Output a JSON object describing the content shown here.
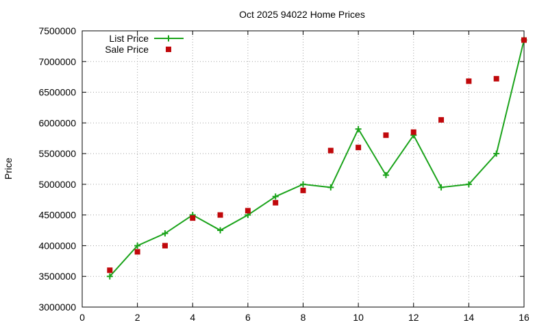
{
  "chart_data": {
    "type": "line",
    "title": "Oct 2025 94022 Home Prices",
    "xlabel": "",
    "ylabel": "Price",
    "xlim": [
      0,
      16
    ],
    "ylim": [
      3000000,
      7500000
    ],
    "x_ticks": [
      "0",
      "2",
      "4",
      "6",
      "8",
      "10",
      "12",
      "14",
      "16"
    ],
    "y_ticks": [
      "3000000",
      "3500000",
      "4000000",
      "4500000",
      "5000000",
      "5500000",
      "6000000",
      "6500000",
      "7000000",
      "7500000"
    ],
    "grid": true,
    "legend_position": "top-left",
    "series": [
      {
        "name": "List Price",
        "style": "line-with-plus-markers",
        "color": "#1aa31a",
        "x": [
          1,
          2,
          3,
          4,
          5,
          6,
          7,
          8,
          9,
          10,
          11,
          12,
          13,
          14,
          15,
          16
        ],
        "y": [
          3500000,
          4000000,
          4200000,
          4500000,
          4250000,
          4500000,
          4800000,
          5000000,
          4950000,
          5900000,
          5150000,
          5800000,
          4950000,
          5000000,
          5500000,
          7350000
        ]
      },
      {
        "name": "Sale Price",
        "style": "square-markers",
        "color": "#c0080b",
        "x": [
          1,
          2,
          3,
          4,
          5,
          6,
          7,
          8,
          9,
          10,
          11,
          12,
          13,
          14,
          15,
          16
        ],
        "y": [
          3600000,
          3900000,
          4000000,
          4450000,
          4500000,
          4570000,
          4700000,
          4900000,
          5550000,
          5600000,
          5800000,
          5850000,
          6050000,
          6680000,
          6720000,
          7350000
        ]
      }
    ]
  }
}
